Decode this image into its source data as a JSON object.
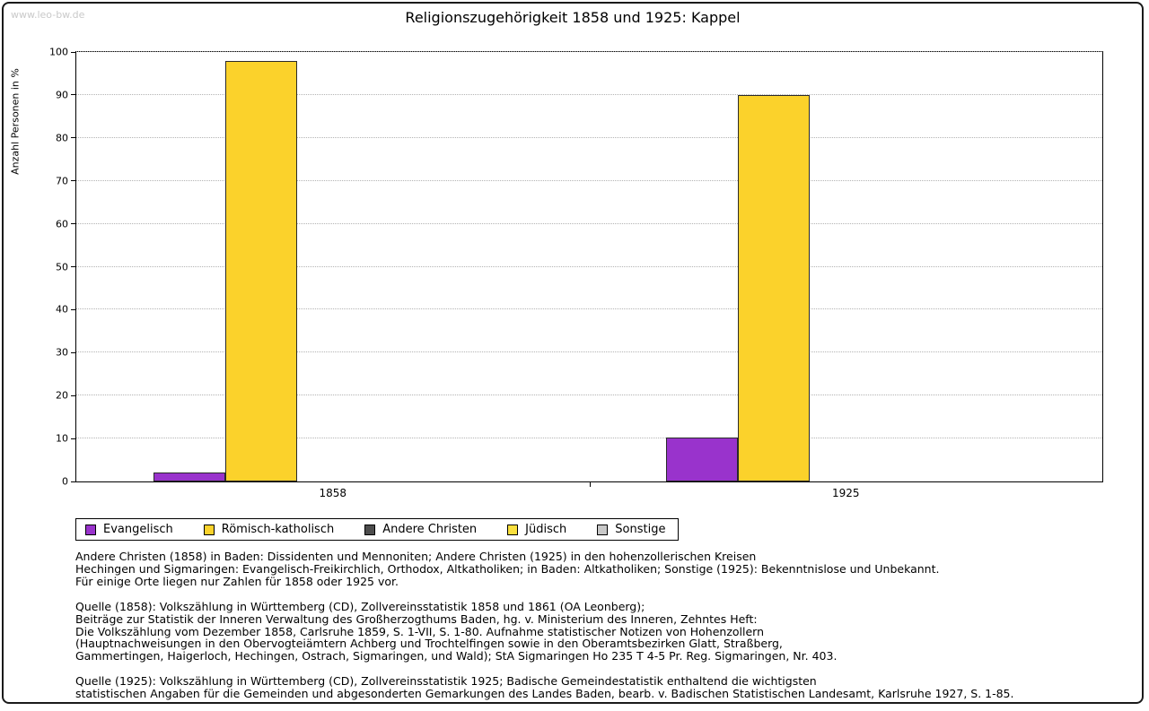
{
  "watermark": "www.leo-bw.de",
  "title": "Religionszugehörigkeit 1858 und 1925: Kappel",
  "chart_data": {
    "type": "bar",
    "title": "Religionszugehörigkeit 1858 und 1925: Kappel",
    "xlabel": "",
    "ylabel": "Anzahl Personen in %",
    "ylim": [
      0,
      100
    ],
    "ytick_step": 10,
    "grid": "horizontal-dotted",
    "legend_position": "bottom",
    "categories": [
      "1858",
      "1925"
    ],
    "series": [
      {
        "name": "Evangelisch",
        "color": "#9933CC",
        "values": [
          2,
          10.3
        ]
      },
      {
        "name": "Römisch-katholisch",
        "color": "#FBD22B",
        "values": [
          98,
          90
        ]
      },
      {
        "name": "Andere Christen",
        "color": "#4D4D4D",
        "values": [
          0,
          0
        ]
      },
      {
        "name": "Jüdisch",
        "color": "#F9DF3D",
        "values": [
          0,
          0
        ]
      },
      {
        "name": "Sonstige",
        "color": "#C8C8C8",
        "values": [
          0,
          0
        ]
      }
    ]
  },
  "footer": {
    "notes_lines": [
      "Andere Christen (1858) in Baden: Dissidenten und Mennoniten; Andere Christen (1925) in den hohenzollerischen Kreisen",
      "Hechingen und Sigmaringen: Evangelisch-Freikirchlich, Orthodox, Altkatholiken; in Baden: Altkatholiken; Sonstige (1925): Bekenntnislose und Unbekannt.",
      "Für einige Orte liegen nur Zahlen für 1858 oder 1925 vor."
    ],
    "source_1858_lines": [
      "Quelle (1858): Volkszählung in Württemberg (CD), Zollvereinsstatistik 1858 und 1861 (OA Leonberg);",
      "Beiträge zur Statistik der Inneren Verwaltung des Großherzogthums Baden, hg. v. Ministerium des Inneren, Zehntes Heft:",
      "Die Volkszählung vom Dezember 1858, Carlsruhe 1859, S. 1-VII, S. 1-80. Aufnahme statistischer Notizen von Hohenzollern",
      "(Hauptnachweisungen in den Obervogteiämtern Achberg und Trochtelfingen sowie in den Oberamtsbezirken Glatt, Straßberg,",
      "Gammertingen, Haigerloch, Hechingen, Ostrach, Sigmaringen, und Wald); StA Sigmaringen Ho 235 T 4-5 Pr. Reg. Sigmaringen, Nr. 403."
    ],
    "source_1925_lines": [
      "Quelle (1925): Volkszählung in Württemberg (CD), Zollvereinsstatistik 1925; Badische Gemeindestatistik enthaltend die wichtigsten",
      "statistischen Angaben für die Gemeinden und abgesonderten Gemarkungen des Landes Baden, bearb. v. Badischen Statistischen Landesamt, Karlsruhe 1927, S. 1-85."
    ]
  }
}
